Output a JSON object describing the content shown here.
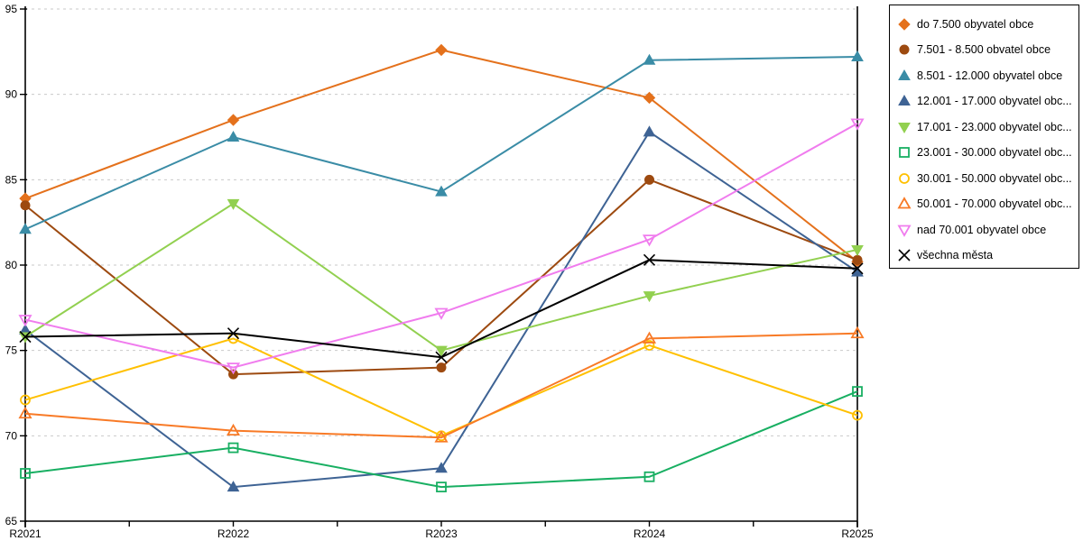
{
  "chart_data": {
    "type": "line",
    "title": "",
    "xlabel": "",
    "ylabel": "",
    "categories": [
      "R2021",
      "R2022",
      "R2023",
      "R2024",
      "R2025"
    ],
    "y_axis": {
      "min": 65,
      "max": 95,
      "step": 5,
      "tick_labels": [
        "65",
        "70",
        "75",
        "80",
        "85",
        "90",
        "95"
      ]
    },
    "grid": "horizontal-dashed",
    "grid_color": "#c9c9c9",
    "axis_color": "#000000",
    "legend_position": "right-outside",
    "series": [
      {
        "name": "do 7.500 obyvatel obce",
        "legend_label": "do 7.500 obyvatel obce",
        "color": "#E4711C",
        "marker": "diamond",
        "marker_style": "filled",
        "values": [
          83.9,
          88.5,
          92.6,
          89.8,
          80.2
        ]
      },
      {
        "name": "7.501 - 8.500 obvatel obce",
        "legend_label": "7.501 - 8.500 obvatel obce",
        "color": "#9D4A10",
        "marker": "circle",
        "marker_style": "filled",
        "values": [
          83.5,
          73.6,
          74.0,
          85.0,
          80.3
        ]
      },
      {
        "name": "8.501 - 12.000 obyvatel obce",
        "legend_label": "8.501 - 12.000 obyvatel obce",
        "color": "#3A8CA6",
        "marker": "triangle-up",
        "marker_style": "filled",
        "values": [
          82.1,
          87.5,
          84.3,
          92.0,
          92.2
        ]
      },
      {
        "name": "12.001 - 17.000 obyvatel obce",
        "legend_label": "12.001 - 17.000 obyvatel obc...",
        "color": "#3E6394",
        "marker": "triangle-up",
        "marker_style": "filled",
        "values": [
          76.2,
          67.0,
          68.1,
          87.8,
          79.6
        ]
      },
      {
        "name": "17.001 - 23.000 obyvatel obce",
        "legend_label": "17.001 - 23.000 obyvatel obc...",
        "color": "#92D050",
        "marker": "triangle-down",
        "marker_style": "filled",
        "values": [
          75.8,
          83.6,
          75.0,
          78.2,
          80.9
        ]
      },
      {
        "name": "23.001 - 30.000 obyvatel obce",
        "legend_label": "23.001 - 30.000 obyvatel obc...",
        "color": "#18AF62",
        "marker": "square",
        "marker_style": "open",
        "values": [
          67.8,
          69.3,
          67.0,
          67.6,
          72.6
        ]
      },
      {
        "name": "30.001 - 50.000 obyvatel obce",
        "legend_label": "30.001 - 50.000 obyvatel obc...",
        "color": "#FFC000",
        "marker": "circle",
        "marker_style": "open",
        "values": [
          72.1,
          75.7,
          70.0,
          75.3,
          71.2
        ]
      },
      {
        "name": "50.001 - 70.000 obyvatel obce",
        "legend_label": "50.001 - 70.000 obyvatel obc...",
        "color": "#F87A26",
        "marker": "triangle-up",
        "marker_style": "open",
        "values": [
          71.3,
          70.3,
          69.9,
          75.7,
          76.0
        ]
      },
      {
        "name": "nad 70.001 obyvatel obce",
        "legend_label": "nad 70.001 obyvatel obce",
        "color": "#F07CEE",
        "marker": "triangle-down",
        "marker_style": "open",
        "values": [
          76.8,
          74.0,
          77.2,
          81.5,
          88.3
        ]
      },
      {
        "name": "všechna města",
        "legend_label": "všechna města",
        "color": "#000000",
        "marker": "x",
        "marker_style": "line",
        "values": [
          75.8,
          76.0,
          74.6,
          80.3,
          79.8
        ]
      }
    ]
  }
}
